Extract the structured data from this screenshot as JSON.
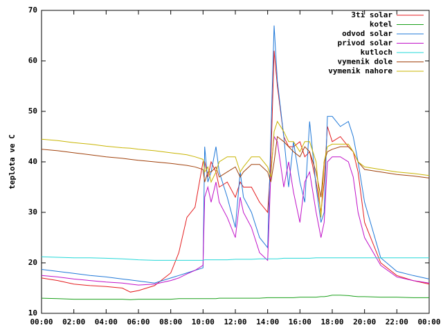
{
  "chart_data": {
    "type": "line",
    "y_label": "teplota ve C",
    "x": [
      0,
      1,
      2,
      3,
      4,
      5,
      5.5,
      6,
      7,
      8,
      8.5,
      9,
      9.5,
      10,
      10.1,
      10.3,
      10.5,
      10.8,
      11,
      11.5,
      12,
      12.3,
      12.5,
      13,
      13.5,
      14,
      14.2,
      14.4,
      14.6,
      15,
      15.3,
      15.6,
      16,
      16.3,
      16.6,
      17,
      17.3,
      17.5,
      17.7,
      18,
      18.5,
      19,
      19.3,
      19.6,
      20,
      21,
      22,
      23,
      24
    ],
    "xlim": [
      0,
      24
    ],
    "xticks": [
      {
        "value": 0,
        "label": "00:00"
      },
      {
        "value": 2,
        "label": "02:00"
      },
      {
        "value": 4,
        "label": "04:00"
      },
      {
        "value": 6,
        "label": "06:00"
      },
      {
        "value": 8,
        "label": "08:00"
      },
      {
        "value": 10,
        "label": "10:00"
      },
      {
        "value": 12,
        "label": "12:00"
      },
      {
        "value": 14,
        "label": "14:00"
      },
      {
        "value": 16,
        "label": "16:00"
      },
      {
        "value": 18,
        "label": "18:00"
      },
      {
        "value": 20,
        "label": "20:00"
      },
      {
        "value": 22,
        "label": "22:00"
      },
      {
        "value": 24,
        "label": "00:00"
      }
    ],
    "ylim": [
      10,
      70
    ],
    "yticks": [
      10,
      20,
      30,
      40,
      50,
      60,
      70
    ],
    "legend": "top-right",
    "series": [
      {
        "name": "3ti solar",
        "color": "#e41a1c",
        "values": [
          17,
          16.5,
          15.8,
          15.5,
          15.3,
          15,
          14.2,
          14.5,
          15.5,
          18,
          22,
          29,
          31,
          40,
          40,
          37,
          40,
          38,
          35,
          36,
          33,
          36,
          35,
          35,
          32,
          30,
          40,
          62,
          55,
          45,
          43,
          43,
          44,
          41,
          42,
          36,
          30,
          36,
          47,
          44,
          45,
          43,
          42,
          38,
          28,
          20,
          17.5,
          16.5,
          15.8
        ]
      },
      {
        "name": "kotel",
        "color": "#1aa01a",
        "values": [
          13,
          12.9,
          12.8,
          12.8,
          12.8,
          12.8,
          12.7,
          12.8,
          12.8,
          12.8,
          12.9,
          12.9,
          12.9,
          12.9,
          12.9,
          12.9,
          12.9,
          12.9,
          13,
          13,
          13,
          13,
          13,
          13,
          13,
          13.1,
          13.1,
          13.1,
          13.1,
          13.1,
          13.1,
          13.1,
          13.2,
          13.2,
          13.2,
          13.2,
          13.3,
          13.3,
          13.4,
          13.6,
          13.6,
          13.5,
          13.4,
          13.3,
          13.3,
          13.2,
          13.2,
          13.1,
          13.1
        ]
      },
      {
        "name": "odvod solar",
        "color": "#1f78d8",
        "values": [
          18.7,
          18.3,
          17.9,
          17.5,
          17.2,
          16.8,
          16.6,
          16.4,
          16,
          17,
          17.5,
          18,
          18.5,
          19,
          43,
          36,
          38,
          43,
          38,
          33,
          27,
          38,
          33,
          30,
          25,
          23,
          45,
          67,
          56,
          45,
          35,
          44,
          36,
          32,
          48,
          35,
          28,
          30,
          49,
          49,
          47,
          48,
          45,
          40,
          32,
          21,
          18.3,
          17.5,
          16.8
        ]
      },
      {
        "name": "privod solar",
        "color": "#c010c8",
        "values": [
          17.5,
          17.2,
          16.8,
          16.5,
          16.2,
          16,
          15.8,
          15.6,
          15.8,
          16.5,
          17,
          17.8,
          18.5,
          19.5,
          33,
          35,
          32,
          36,
          32,
          29,
          25,
          33,
          30,
          27,
          22,
          20.5,
          38,
          45,
          44,
          35,
          40,
          34,
          28,
          36,
          38,
          30,
          25,
          28,
          40,
          41,
          41,
          40,
          37,
          30,
          25,
          19.5,
          17.2,
          16.5,
          16
        ]
      },
      {
        "name": "kutloch",
        "color": "#22d8d8",
        "values": [
          21.2,
          21.1,
          21,
          21,
          20.9,
          20.8,
          20.7,
          20.6,
          20.5,
          20.5,
          20.5,
          20.5,
          20.5,
          20.5,
          20.6,
          20.6,
          20.6,
          20.6,
          20.6,
          20.6,
          20.7,
          20.7,
          20.7,
          20.7,
          20.8,
          20.8,
          20.8,
          20.8,
          20.8,
          20.9,
          20.9,
          20.9,
          20.9,
          20.9,
          20.9,
          21,
          21,
          21,
          21,
          21,
          21,
          21,
          21,
          21,
          21,
          21,
          21,
          21,
          21
        ]
      },
      {
        "name": "vymenik dole",
        "color": "#a0400a",
        "values": [
          42.5,
          42.2,
          41.8,
          41.4,
          41,
          40.7,
          40.5,
          40.3,
          40,
          39.7,
          39.5,
          39.3,
          39,
          38.5,
          36,
          38,
          38,
          39,
          37,
          38,
          39,
          37,
          38,
          39.5,
          39.5,
          38,
          36,
          40,
          45,
          44,
          43,
          42,
          41,
          43,
          42,
          38,
          33,
          40,
          42,
          42.5,
          43,
          43,
          42,
          40,
          38.5,
          38,
          37.5,
          37.2,
          36.8
        ]
      },
      {
        "name": "vymenik nahore",
        "color": "#c8b400",
        "values": [
          44.5,
          44.2,
          43.8,
          43.5,
          43.1,
          42.8,
          42.7,
          42.5,
          42.2,
          41.8,
          41.6,
          41.4,
          41,
          40.5,
          38,
          39,
          36,
          38,
          40,
          41,
          41,
          38,
          39,
          41,
          41,
          39,
          37,
          46,
          48,
          46,
          44,
          44,
          42,
          44,
          44,
          40,
          29,
          40,
          43,
          43.5,
          43.5,
          43.5,
          42,
          40,
          39,
          38.5,
          38,
          37.7,
          37.3
        ]
      }
    ]
  }
}
